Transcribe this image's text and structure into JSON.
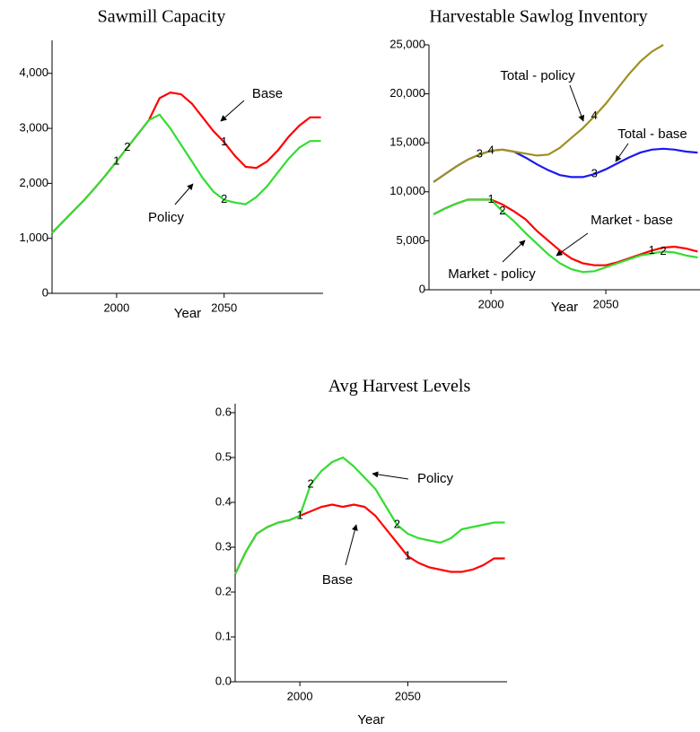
{
  "chart_data": [
    {
      "type": "line",
      "title": "Sawmill Capacity",
      "xlabel": "Year",
      "x": [
        1970,
        1975,
        1980,
        1985,
        1990,
        1995,
        2000,
        2005,
        2010,
        2015,
        2020,
        2025,
        2030,
        2035,
        2040,
        2045,
        2050,
        2055,
        2060,
        2065,
        2070,
        2075,
        2080,
        2085,
        2090,
        2095
      ],
      "series": [
        {
          "name": "Base",
          "marker": "1",
          "color": "#ff0000",
          "values": [
            1100,
            1300,
            1500,
            1700,
            1920,
            2150,
            2400,
            2650,
            2900,
            3150,
            3550,
            3650,
            3620,
            3450,
            3200,
            2950,
            2750,
            2500,
            2300,
            2280,
            2400,
            2600,
            2850,
            3050,
            3200,
            3200
          ]
        },
        {
          "name": "Policy",
          "marker": "2",
          "color": "#33dd33",
          "values": [
            1100,
            1300,
            1500,
            1700,
            1920,
            2150,
            2400,
            2650,
            2900,
            3150,
            3250,
            3000,
            2700,
            2400,
            2100,
            1850,
            1700,
            1650,
            1620,
            1750,
            1950,
            2200,
            2450,
            2650,
            2770,
            2770
          ]
        }
      ],
      "xlim": [
        1970,
        2096
      ],
      "ylim": [
        0,
        4600
      ],
      "xticks": [
        2000,
        2050
      ],
      "yticks": [
        0,
        {
          "value": 1000,
          "label": "1,000"
        },
        {
          "value": 2000,
          "label": "2,000"
        },
        {
          "value": 3000,
          "label": "3,000"
        },
        {
          "value": 4000,
          "label": "4,000"
        }
      ]
    },
    {
      "type": "line",
      "title": "Harvestable Sawlog Inventory",
      "xlabel": "Year",
      "x": [
        1975,
        1980,
        1985,
        1990,
        1995,
        2000,
        2005,
        2010,
        2015,
        2020,
        2025,
        2030,
        2035,
        2040,
        2045,
        2050,
        2055,
        2060,
        2065,
        2070,
        2075,
        2080,
        2085,
        2090
      ],
      "series": [
        {
          "name": "Market - base",
          "marker": "1",
          "color": "#ff0000",
          "values": [
            7700,
            8300,
            8800,
            9200,
            9200,
            9200,
            8700,
            8000,
            7200,
            6000,
            5000,
            4000,
            3200,
            2700,
            2500,
            2500,
            2800,
            3200,
            3600,
            4000,
            4300,
            4400,
            4200,
            3900
          ]
        },
        {
          "name": "Market - policy",
          "marker": "2",
          "color": "#33dd33",
          "values": [
            7700,
            8300,
            8800,
            9200,
            9200,
            9200,
            8000,
            7000,
            5800,
            4700,
            3600,
            2700,
            2100,
            1800,
            1900,
            2300,
            2700,
            3100,
            3500,
            3700,
            3900,
            3800,
            3500,
            3300
          ]
        },
        {
          "name": "Total - base",
          "marker": "3",
          "color": "#1a1aee",
          "values": [
            11000,
            11800,
            12600,
            13300,
            13800,
            14200,
            14300,
            14100,
            13500,
            12800,
            12200,
            11700,
            11500,
            11500,
            11800,
            12300,
            12900,
            13500,
            14000,
            14300,
            14400,
            14300,
            14100,
            14000
          ]
        },
        {
          "name": "Total - policy",
          "marker": "4",
          "color": "#a09020",
          "values": [
            11000,
            11800,
            12600,
            13300,
            13800,
            14200,
            14300,
            14100,
            13900,
            13700,
            13800,
            14500,
            15500,
            16500,
            17700,
            19000,
            20500,
            22000,
            23300,
            24300,
            25000,
            null,
            null,
            null
          ]
        }
      ],
      "xlim": [
        1973,
        2091
      ],
      "ylim": [
        0,
        25000
      ],
      "xticks": [
        2000,
        2050
      ],
      "yticks": [
        0,
        {
          "value": 5000,
          "label": "5,000"
        },
        {
          "value": 10000,
          "label": "10,000"
        },
        {
          "value": 15000,
          "label": "15,000"
        },
        {
          "value": 20000,
          "label": "20,000"
        },
        {
          "value": 25000,
          "label": "25,000"
        }
      ]
    },
    {
      "type": "line",
      "title": "Avg Harvest Levels",
      "xlabel": "Year",
      "x": [
        1970,
        1975,
        1980,
        1985,
        1990,
        1995,
        2000,
        2005,
        2010,
        2015,
        2020,
        2025,
        2030,
        2035,
        2040,
        2045,
        2050,
        2055,
        2060,
        2065,
        2070,
        2075,
        2080,
        2085,
        2090,
        2095
      ],
      "series": [
        {
          "name": "Base",
          "marker": "1",
          "color": "#ff0000",
          "values": [
            0.24,
            0.29,
            0.33,
            0.345,
            0.355,
            0.36,
            0.37,
            0.38,
            0.39,
            0.395,
            0.39,
            0.395,
            0.39,
            0.37,
            0.34,
            0.31,
            0.28,
            0.265,
            0.255,
            0.25,
            0.245,
            0.245,
            0.25,
            0.26,
            0.275,
            0.275
          ]
        },
        {
          "name": "Policy",
          "marker": "2",
          "color": "#33dd33",
          "values": [
            0.24,
            0.29,
            0.33,
            0.345,
            0.355,
            0.36,
            0.37,
            0.44,
            0.47,
            0.49,
            0.5,
            0.48,
            0.455,
            0.43,
            0.39,
            0.35,
            0.33,
            0.32,
            0.315,
            0.31,
            0.32,
            0.34,
            0.345,
            0.35,
            0.355,
            0.355
          ]
        }
      ],
      "xlim": [
        1970,
        2096
      ],
      "ylim": [
        0,
        0.62
      ],
      "xticks": [
        2000,
        2050
      ],
      "yticks": [
        {
          "value": 0,
          "label": "0.0"
        },
        0.1,
        0.2,
        0.3,
        0.4,
        0.5,
        0.6
      ]
    }
  ]
}
